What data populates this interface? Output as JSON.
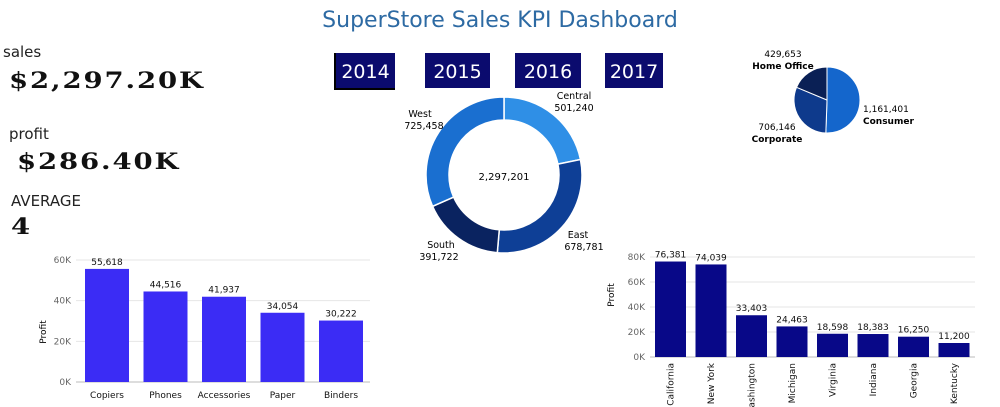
{
  "header": {
    "title": "SuperStore Sales KPI Dashboard"
  },
  "kpis": {
    "sales_label": "sales",
    "sales_value": "$2,297.20K",
    "profit_label": "profit",
    "profit_value": "$286.40K",
    "average_label": "AVERAGE",
    "average_value": "4"
  },
  "year_filters": [
    "2014",
    "2015",
    "2016",
    "2017"
  ],
  "colors": {
    "title": "#2d6aa3",
    "year_button": "#0b0b6e",
    "category_bar": "#3b2cf5",
    "state_bar": "#080888"
  },
  "chart_data": [
    {
      "id": "region-donut",
      "type": "pie",
      "variant": "donut",
      "center_label": "2,297,201",
      "slices": [
        {
          "name": "Central",
          "value": 501240,
          "label": "501,240",
          "color": "#2f8fe6"
        },
        {
          "name": "East",
          "value": 678781,
          "label": "678,781",
          "color": "#0e3f96"
        },
        {
          "name": "South",
          "value": 391722,
          "label": "391,722",
          "color": "#0a2360"
        },
        {
          "name": "West",
          "value": 725458,
          "label": "725,458",
          "color": "#1a6fd0"
        }
      ]
    },
    {
      "id": "segment-pie",
      "type": "pie",
      "slices": [
        {
          "name": "Consumer",
          "value": 1161401,
          "label": "1,161,401",
          "color": "#1466cc"
        },
        {
          "name": "Corporate",
          "value": 706146,
          "label": "706,146",
          "color": "#0e3a8c"
        },
        {
          "name": "Home Office",
          "value": 429653,
          "label": "429,653",
          "color": "#0a2055"
        }
      ]
    },
    {
      "id": "category-profit",
      "type": "bar",
      "ylabel": "Profit",
      "ylim": [
        0,
        60000
      ],
      "yticks": [
        "0K",
        "20K",
        "40K",
        "60K"
      ],
      "categories": [
        "Copiers",
        "Phones",
        "Accessories",
        "Paper",
        "Binders"
      ],
      "values": [
        55618,
        44516,
        41937,
        34054,
        30222
      ],
      "labels": [
        "55,618",
        "44,516",
        "41,937",
        "34,054",
        "30,222"
      ]
    },
    {
      "id": "state-profit",
      "type": "bar",
      "ylabel": "Profit",
      "ylim": [
        0,
        80000
      ],
      "yticks": [
        "0K",
        "20K",
        "40K",
        "60K",
        "80K"
      ],
      "categories": [
        "California",
        "New York",
        "Washington",
        "Michigan",
        "Virginia",
        "Indiana",
        "Georgia",
        "Kentucky"
      ],
      "values": [
        76381,
        74039,
        33403,
        24463,
        18598,
        18383,
        16250,
        11200
      ],
      "labels": [
        "76,381",
        "74,039",
        "33,403",
        "24,463",
        "18,598",
        "18,383",
        "16,250",
        "11,200"
      ]
    }
  ]
}
